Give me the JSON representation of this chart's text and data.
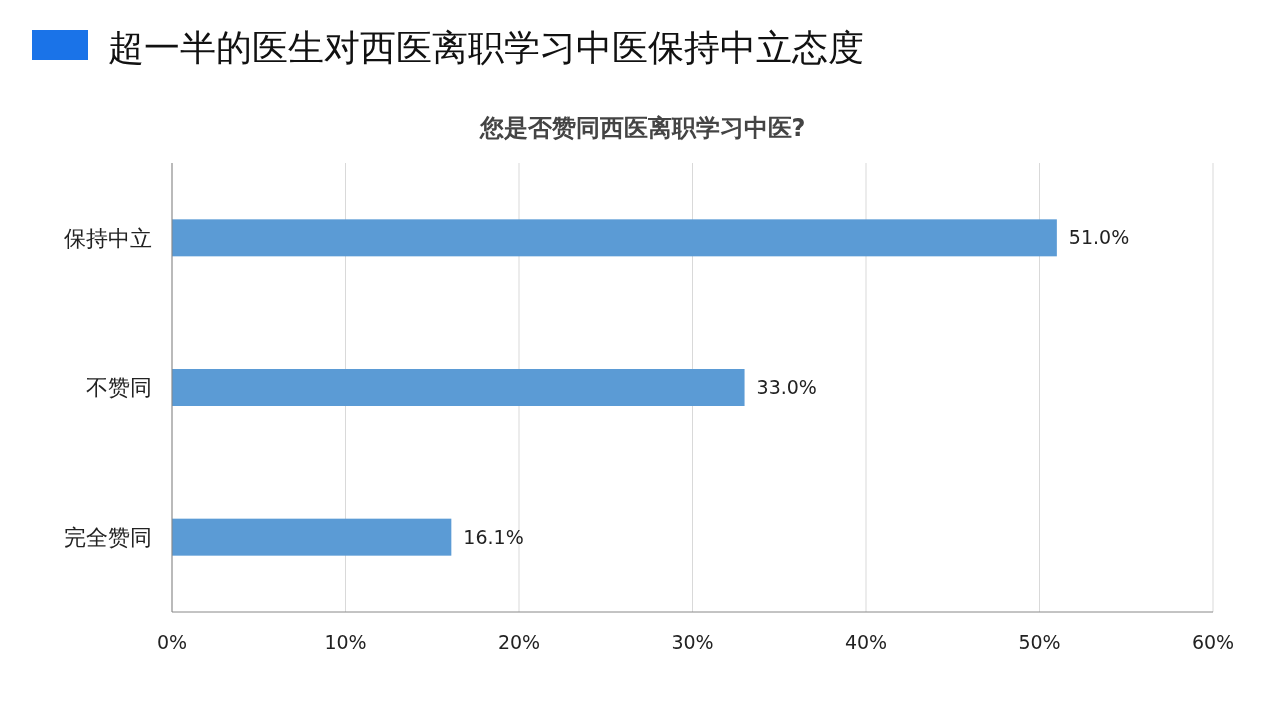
{
  "chart_data": {
    "type": "bar",
    "orientation": "horizontal",
    "title": "超一半的医生对西医离职学习中医保持中立态度",
    "subtitle": "您是否赞同西医离职学习中医?",
    "categories": [
      "保持中立",
      "不赞同",
      "完全赞同"
    ],
    "values": [
      51.0,
      33.0,
      16.1
    ],
    "value_labels": [
      "51.0%",
      "33.0%",
      "16.1%"
    ],
    "color": "#5b9bd5",
    "xlim": [
      0,
      60
    ],
    "xticks": [
      {
        "value": 0,
        "label": "0%"
      },
      {
        "value": 10,
        "label": "10%"
      },
      {
        "value": 20,
        "label": "20%"
      },
      {
        "value": 30,
        "label": "30%"
      },
      {
        "value": 40,
        "label": "40%"
      },
      {
        "value": 50,
        "label": "50%"
      },
      {
        "value": 60,
        "label": "60%"
      }
    ],
    "grid": "x"
  }
}
